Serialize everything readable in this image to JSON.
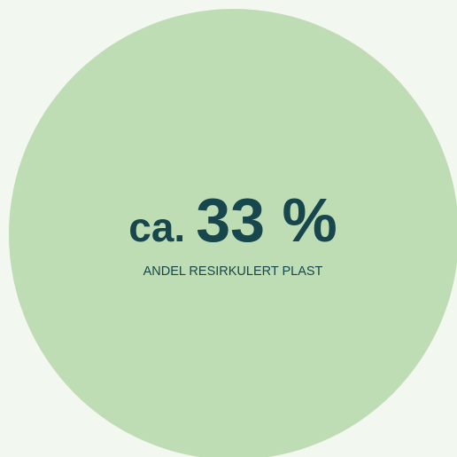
{
  "stat": {
    "prefix": "ca.",
    "value": "33 %",
    "label": "ANDEL RESIRKULERT PLAST"
  }
}
